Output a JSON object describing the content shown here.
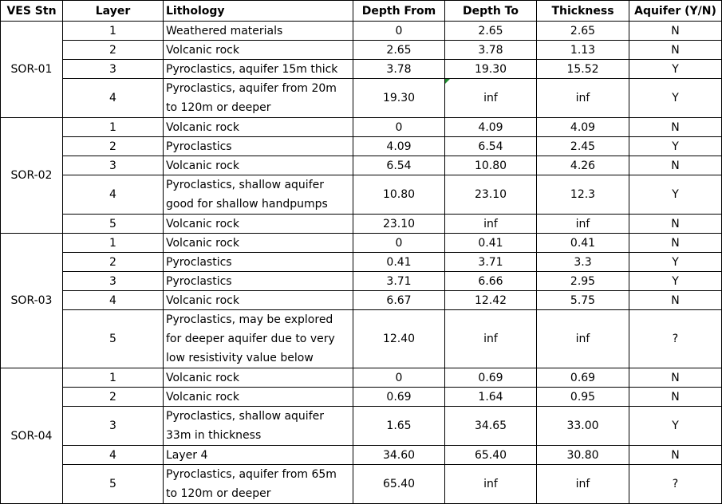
{
  "headers": {
    "ves": "VES Stn",
    "layer": "Layer",
    "lithology": "Lithology",
    "depth_from": "Depth From",
    "depth_to": "Depth To",
    "thickness": "Thickness",
    "aquifer": "Aquifer (Y/N)"
  },
  "stations": [
    {
      "name": "SOR-01",
      "rows": [
        {
          "layer": "1",
          "lithology": "Weathered materials",
          "from": "0",
          "to": "2.65",
          "thickness": "2.65",
          "aquifer": "N"
        },
        {
          "layer": "2",
          "lithology": "Volcanic rock",
          "from": "2.65",
          "to": "3.78",
          "thickness": "1.13",
          "aquifer": "N"
        },
        {
          "layer": "3",
          "lithology": "Pyroclastics, aquifer 15m thick",
          "from": "3.78",
          "to": "19.30",
          "thickness": "15.52",
          "aquifer": "Y"
        },
        {
          "layer": "4",
          "lithology": "Pyroclastics, aquifer from 20m to 120m or deeper",
          "from": "19.30",
          "to": "inf",
          "thickness": "inf",
          "aquifer": "Y"
        }
      ]
    },
    {
      "name": "SOR-02",
      "rows": [
        {
          "layer": "1",
          "lithology": "Volcanic rock",
          "from": "0",
          "to": "4.09",
          "thickness": "4.09",
          "aquifer": "N"
        },
        {
          "layer": "2",
          "lithology": "Pyroclastics",
          "from": "4.09",
          "to": "6.54",
          "thickness": "2.45",
          "aquifer": "Y"
        },
        {
          "layer": "3",
          "lithology": "Volcanic rock",
          "from": "6.54",
          "to": "10.80",
          "thickness": "4.26",
          "aquifer": "N"
        },
        {
          "layer": "4",
          "lithology": "Pyroclastics, shallow aquifer good for shallow handpumps",
          "from": "10.80",
          "to": "23.10",
          "thickness": "12.3",
          "aquifer": "Y"
        },
        {
          "layer": "5",
          "lithology": "Volcanic rock",
          "from": "23.10",
          "to": "inf",
          "thickness": "inf",
          "aquifer": "N"
        }
      ]
    },
    {
      "name": "SOR-03",
      "rows": [
        {
          "layer": "1",
          "lithology": "Volcanic rock",
          "from": "0",
          "to": "0.41",
          "thickness": "0.41",
          "aquifer": "N"
        },
        {
          "layer": "2",
          "lithology": "Pyroclastics",
          "from": "0.41",
          "to": "3.71",
          "thickness": "3.3",
          "aquifer": "Y"
        },
        {
          "layer": "3",
          "lithology": "Pyroclastics",
          "from": "3.71",
          "to": "6.66",
          "thickness": "2.95",
          "aquifer": "Y"
        },
        {
          "layer": "4",
          "lithology": "Volcanic rock",
          "from": "6.67",
          "to": "12.42",
          "thickness": "5.75",
          "aquifer": "N"
        },
        {
          "layer": "5",
          "lithology": "Pyroclastics, may be explored for deeper aquifer due to very low resistivity value below",
          "from": "12.40",
          "to": "inf",
          "thickness": "inf",
          "aquifer": "?"
        }
      ]
    },
    {
      "name": "SOR-04",
      "rows": [
        {
          "layer": "1",
          "lithology": "Volcanic rock",
          "from": "0",
          "to": "0.69",
          "thickness": "0.69",
          "aquifer": "N"
        },
        {
          "layer": "2",
          "lithology": "Volcanic rock",
          "from": "0.69",
          "to": "1.64",
          "thickness": "0.95",
          "aquifer": "N"
        },
        {
          "layer": "3",
          "lithology": "Pyroclastics, shallow aquifer 33m in thickness",
          "from": "1.65",
          "to": "34.65",
          "thickness": "33.00",
          "aquifer": "Y"
        },
        {
          "layer": "4",
          "lithology": "Layer 4",
          "from": "34.60",
          "to": "65.40",
          "thickness": "30.80",
          "aquifer": "N"
        },
        {
          "layer": "5",
          "lithology": "Pyroclastics, aquifer from 65m to 120m or deeper",
          "from": "65.40",
          "to": "inf",
          "thickness": "inf",
          "aquifer": "?"
        }
      ]
    }
  ]
}
